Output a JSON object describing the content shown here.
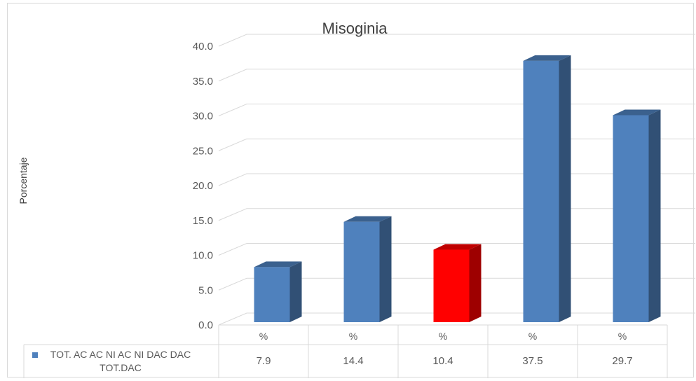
{
  "chart_data": {
    "type": "bar",
    "title": "Misoginia",
    "ylabel": "Porcentaje",
    "xlabel": "",
    "ylim": [
      0,
      40
    ],
    "ytick_step": 5,
    "ytick_decimals": 1,
    "grid": true,
    "categories": [
      "%",
      "%",
      "%",
      "%",
      "%"
    ],
    "series": [
      {
        "name": "TOT. AC AC NI AC NI DAC DAC TOT.DAC",
        "values": [
          7.9,
          14.4,
          10.4,
          37.5,
          29.7
        ],
        "color": "#4f81bd"
      }
    ],
    "highlight": {
      "index": 2,
      "color": "#ff0000"
    },
    "legend": "in data table",
    "style": "3d-column with data table"
  }
}
